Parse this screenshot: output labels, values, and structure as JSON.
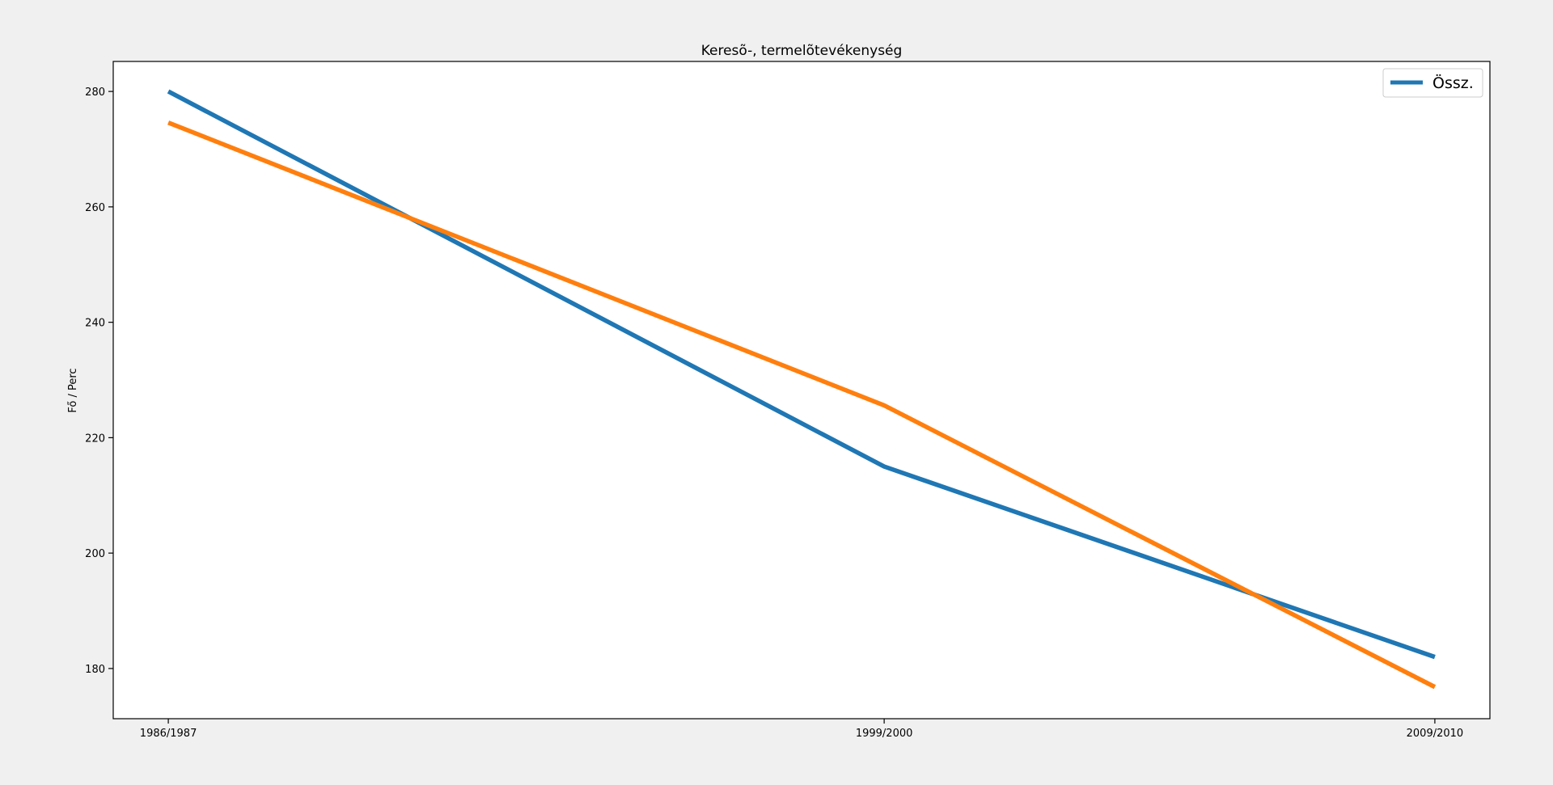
{
  "chart_data": {
    "type": "line",
    "title": "Keresõ-, termelõtevékenység",
    "xlabel": "",
    "ylabel": "Fő / Perc",
    "categories": [
      "1986/1987",
      "1999/2000",
      "2009/2010"
    ],
    "x_positions": [
      1986.5,
      1999.5,
      2009.5
    ],
    "ylim": [
      171.3,
      285.2
    ],
    "yticks": [
      180,
      200,
      220,
      240,
      260,
      280
    ],
    "grid": false,
    "legend_position": "top-right",
    "series": [
      {
        "name": "Össz.",
        "color": "#1f77b4",
        "values": [
          280,
          215,
          182
        ],
        "in_legend": true
      },
      {
        "name": "",
        "color": "#ff7f0e",
        "values": [
          274.6,
          225.6,
          176.8
        ],
        "in_legend": false
      }
    ]
  }
}
